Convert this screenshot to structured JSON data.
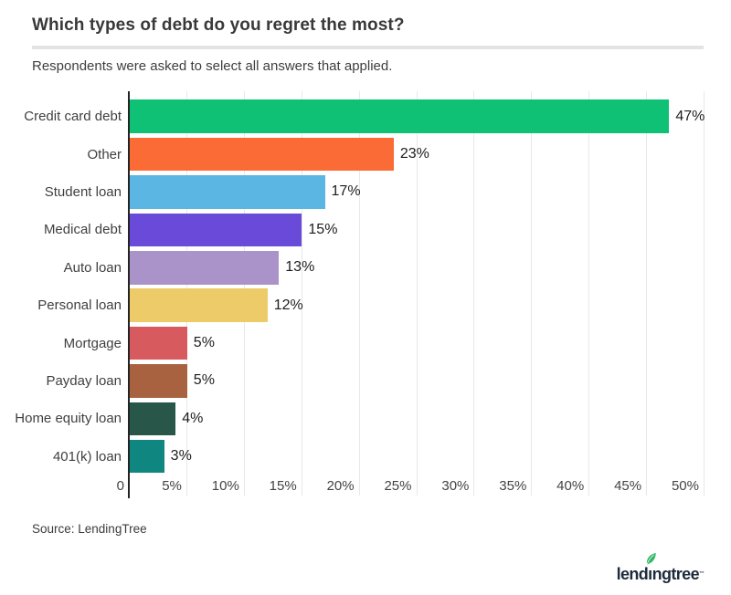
{
  "header": {
    "title": "Which types of debt do you regret the most?",
    "subtitle": "Respondents were asked to select all answers that applied."
  },
  "footer": {
    "source": "Source: LendingTree",
    "logo": {
      "brand": "lendingtree",
      "text_before_leaf": "lend",
      "dotless_i": "ı",
      "text_after_leaf": "ngtree",
      "trademark": "™",
      "leaf_color": "#2eb863",
      "text_color": "#1d2b3a"
    }
  },
  "chart_data": {
    "type": "bar",
    "orientation": "horizontal",
    "title": "Which types of debt do you regret the most?",
    "subtitle": "Respondents were asked to select all answers that applied.",
    "categories": [
      "Credit card debt",
      "Other",
      "Student loan",
      "Medical debt",
      "Auto loan",
      "Personal loan",
      "Mortgage",
      "Payday loan",
      "Home equity loan",
      "401(k) loan"
    ],
    "values": [
      47,
      23,
      17,
      15,
      13,
      12,
      5,
      5,
      4,
      3
    ],
    "value_labels": [
      "47%",
      "23%",
      "17%",
      "15%",
      "13%",
      "12%",
      "5%",
      "5%",
      "4%",
      "3%"
    ],
    "bar_colors": [
      "#0ec175",
      "#fb6b35",
      "#5bb6e3",
      "#6a4ad9",
      "#aa93c9",
      "#edcb68",
      "#d75a5f",
      "#a9623f",
      "#28574a",
      "#0f8680"
    ],
    "xlabel": "",
    "ylabel": "",
    "xlim": [
      0,
      50
    ],
    "x_ticks": [
      {
        "value": 0,
        "label": "0"
      },
      {
        "value": 5,
        "label": "5%"
      },
      {
        "value": 10,
        "label": "10%"
      },
      {
        "value": 15,
        "label": "15%"
      },
      {
        "value": 20,
        "label": "20%"
      },
      {
        "value": 25,
        "label": "25%"
      },
      {
        "value": 30,
        "label": "30%"
      },
      {
        "value": 35,
        "label": "35%"
      },
      {
        "value": 40,
        "label": "40%"
      },
      {
        "value": 45,
        "label": "45%"
      },
      {
        "value": 50,
        "label": "50%"
      }
    ],
    "grid": true,
    "grid_color": "#e8e8e8",
    "axis_color": "#242424",
    "legend": "none"
  }
}
